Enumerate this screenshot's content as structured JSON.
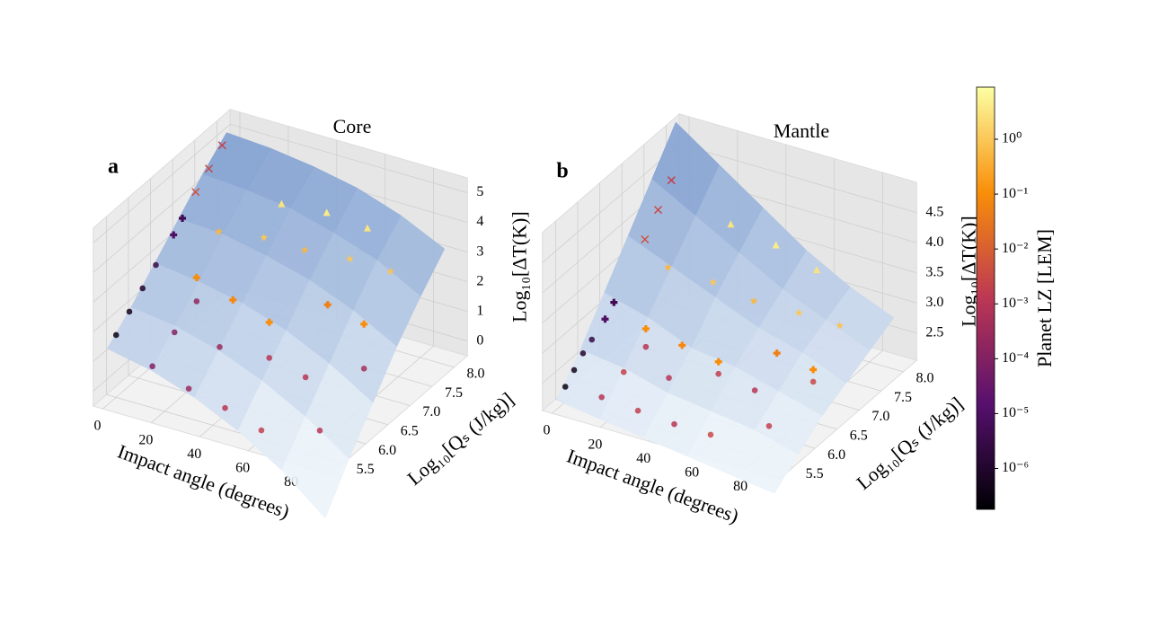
{
  "chart_data": [
    {
      "type": "scatter3d",
      "panel_label": "a",
      "title": "Core",
      "xlabel": "Impact angle (degrees)",
      "ylabel": "Log₁₀[Qₛ (J/kg)]",
      "zlabel": "Log₁₀[ΔT(K)]",
      "xlim": [
        -4,
        94
      ],
      "ylim": [
        5.2,
        8.3
      ],
      "zlim": [
        -0.5,
        5.5
      ],
      "xticks": [
        0,
        20,
        40,
        60,
        80
      ],
      "yticks": [
        5.5,
        {
          "value": 6,
          "label": "6.0"
        },
        6.5,
        {
          "value": 7,
          "label": "7.0"
        },
        7.5,
        {
          "value": 8,
          "label": "8.0"
        }
      ],
      "zticks": [
        0,
        1,
        2,
        3,
        4,
        5
      ],
      "surface": {
        "x": [
          0,
          18,
          36,
          54,
          72,
          90
        ],
        "y": [
          5.3,
          5.84,
          6.38,
          6.92,
          7.46,
          8.0
        ],
        "z": [
          [
            1.4,
            2.1,
            2.9,
            3.7,
            4.5,
            5.2
          ],
          [
            1.1,
            1.9,
            2.7,
            3.6,
            4.4,
            5.1
          ],
          [
            0.6,
            1.5,
            2.4,
            3.3,
            4.2,
            4.9
          ],
          [
            -0.1,
            0.9,
            1.9,
            2.9,
            3.8,
            4.6
          ],
          [
            -1.0,
            0.1,
            1.2,
            2.3,
            3.3,
            4.1
          ],
          [
            -2.2,
            -0.9,
            0.3,
            1.5,
            2.5,
            3.4
          ]
        ]
      },
      "series": [
        {
          "marker": "o",
          "x": [
            0,
            0,
            0,
            0,
            15,
            15,
            15,
            30,
            30,
            45,
            45,
            60,
            60,
            75,
            75
          ],
          "y": [
            5.5,
            5.8,
            6.1,
            6.4,
            5.5,
            6.0,
            6.5,
            5.5,
            6.2,
            5.5,
            6.5,
            5.5,
            6.5,
            6.0,
            7.0
          ],
          "z": [
            1.6,
            2.0,
            2.4,
            2.8,
            0.9,
            1.4,
            1.8,
            0.5,
            1.0,
            0.2,
            0.6,
            -0.2,
            0.3,
            -0.5,
            0.3
          ],
          "c": [
            3e-07,
            5e-07,
            1e-06,
            3e-06,
            0.0001,
            0.0001,
            0.0002,
            0.0003,
            0.0003,
            0.001,
            0.001,
            0.002,
            0.001,
            0.001,
            0.0005
          ]
        },
        {
          "marker": "x",
          "x": [
            0,
            0,
            0
          ],
          "y": [
            7.3,
            7.6,
            7.9
          ],
          "z": [
            4.1,
            4.5,
            4.9
          ],
          "c": [
            0.005,
            0.003,
            0.002
          ]
        },
        {
          "marker": "P",
          "x": [
            0,
            0,
            15,
            30,
            45,
            60,
            75
          ],
          "y": [
            7.0,
            6.8,
            6.5,
            6.5,
            6.5,
            7.0,
            7.0
          ],
          "z": [
            3.6,
            3.3,
            2.6,
            2.2,
            1.8,
            2.1,
            1.8
          ],
          "c": [
            5e-06,
            1e-05,
            0.1,
            0.08,
            0.1,
            0.05,
            0.1
          ]
        },
        {
          "marker": "*",
          "x": [
            15,
            30,
            45,
            60,
            75
          ],
          "y": [
            7.0,
            7.2,
            7.3,
            7.5,
            7.6
          ],
          "z": [
            3.5,
            3.4,
            3.2,
            3.0,
            2.8
          ],
          "c": [
            0.5,
            1,
            0.5,
            1,
            0.8
          ]
        },
        {
          "marker": "^",
          "x": [
            30,
            45,
            60
          ],
          "y": [
            7.6,
            7.8,
            7.9
          ],
          "z": [
            4.0,
            3.8,
            3.5
          ],
          "c": [
            3,
            4,
            3
          ]
        }
      ]
    },
    {
      "type": "scatter3d",
      "panel_label": "b",
      "title": "Mantle",
      "xlabel": "Impact angle (degrees)",
      "ylabel": "Log₁₀[Qₛ (J/kg)]",
      "zlabel": "Log₁₀[ΔT(K)]",
      "xlim": [
        -4,
        94
      ],
      "ylim": [
        5.2,
        8.3
      ],
      "zlim": [
        2.05,
        5.0
      ],
      "xticks": [
        0,
        20,
        40,
        60,
        80
      ],
      "yticks": [
        5.5,
        {
          "value": 6,
          "label": "6.0"
        },
        6.5,
        {
          "value": 7,
          "label": "7.0"
        },
        7.5,
        {
          "value": 8,
          "label": "8.0"
        }
      ],
      "zticks": [
        2.5,
        {
          "value": 3,
          "label": "3.0"
        },
        3.5,
        {
          "value": 4,
          "label": "4.0"
        },
        4.5
      ],
      "surface": {
        "x": [
          0,
          18,
          36,
          54,
          72,
          90
        ],
        "y": [
          5.3,
          5.84,
          6.38,
          6.92,
          7.46,
          8.0
        ],
        "z": [
          [
            2.2,
            2.7,
            3.3,
            3.9,
            4.5,
            5.1
          ],
          [
            2.1,
            2.6,
            3.1,
            3.6,
            4.1,
            4.6
          ],
          [
            2.0,
            2.4,
            2.8,
            3.3,
            3.7,
            4.1
          ],
          [
            1.9,
            2.3,
            2.7,
            3.0,
            3.3,
            3.6
          ],
          [
            1.8,
            2.2,
            2.5,
            2.8,
            3.0,
            3.2
          ],
          [
            1.7,
            2.0,
            2.3,
            2.5,
            2.7,
            2.9
          ]
        ]
      },
      "series": [
        {
          "marker": "o",
          "x": [
            0,
            0,
            0,
            0,
            15,
            15,
            15,
            30,
            30,
            45,
            45,
            60,
            60,
            75,
            75
          ],
          "y": [
            5.5,
            5.7,
            5.9,
            6.1,
            5.5,
            6.0,
            6.5,
            5.5,
            6.2,
            5.5,
            6.5,
            5.5,
            6.5,
            6.0,
            7.0
          ],
          "z": [
            2.3,
            2.45,
            2.6,
            2.7,
            2.3,
            2.4,
            2.5,
            2.25,
            2.35,
            2.2,
            2.4,
            2.2,
            2.3,
            2.2,
            2.3
          ],
          "c": [
            3e-07,
            5e-07,
            1e-06,
            3e-06,
            0.001,
            0.002,
            0.001,
            0.002,
            0.001,
            0.001,
            0.002,
            0.003,
            0.001,
            0.002,
            0.003
          ]
        },
        {
          "marker": "x",
          "x": [
            0,
            0,
            0
          ],
          "y": [
            7.3,
            7.6,
            7.9
          ],
          "z": [
            3.6,
            3.9,
            4.2
          ],
          "c": [
            0.005,
            0.003,
            0.002
          ]
        },
        {
          "marker": "P",
          "x": [
            0,
            0,
            15,
            30,
            45,
            60,
            75
          ],
          "y": [
            6.6,
            6.4,
            6.5,
            6.5,
            6.5,
            7.0,
            7.0
          ],
          "z": [
            3.0,
            2.85,
            2.8,
            2.7,
            2.6,
            2.6,
            2.5
          ],
          "c": [
            5e-06,
            1e-05,
            0.1,
            0.08,
            0.1,
            0.05,
            0.1
          ]
        },
        {
          "marker": "*",
          "x": [
            15,
            30,
            45,
            60,
            75
          ],
          "y": [
            7.0,
            7.2,
            7.3,
            7.5,
            7.6
          ],
          "z": [
            3.5,
            3.3,
            3.1,
            2.95,
            2.85
          ],
          "c": [
            0.5,
            1,
            0.5,
            1,
            0.8
          ]
        },
        {
          "marker": "^",
          "x": [
            30,
            45,
            60
          ],
          "y": [
            7.6,
            7.8,
            7.9
          ],
          "z": [
            4.0,
            3.7,
            3.4
          ],
          "c": [
            3,
            4,
            3
          ]
        }
      ]
    },
    {
      "type": "colorbar",
      "label": "Planet LZ [LEM]",
      "clim": [
        1.8e-07,
        8.9
      ],
      "log": true,
      "ticks": [
        {
          "value": 1e-06,
          "label": "10⁻⁶"
        },
        {
          "value": 1e-05,
          "label": "10⁻⁵"
        },
        {
          "value": 0.0001,
          "label": "10⁻⁴"
        },
        {
          "value": 0.001,
          "label": "10⁻³"
        },
        {
          "value": 0.01,
          "label": "10⁻²"
        },
        {
          "value": 0.1,
          "label": "10⁻¹"
        },
        {
          "value": 1,
          "label": "10⁰"
        }
      ]
    }
  ]
}
